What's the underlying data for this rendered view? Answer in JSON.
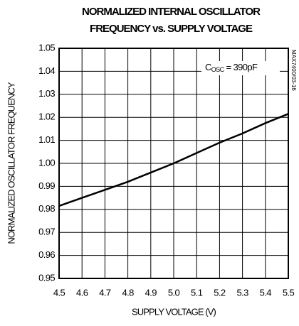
{
  "chart_data": {
    "type": "line",
    "title": [
      "NORMALIZED INTERNAL OSCILLATOR",
      "FREQUENCY vs. SUPPLY VOLTAGE"
    ],
    "x_label": "SUPPLY VOLTAGE (V)",
    "y_label": "NORMALIZED OSCILLATOR FREQUENCY",
    "annotation": {
      "main": "C",
      "subscript": "OSC",
      "rest": " = 390pF"
    },
    "figure_id": "MAX7400/03-16",
    "x": [
      4.5,
      4.6,
      4.7,
      4.8,
      4.9,
      5.0,
      5.1,
      5.2,
      5.3,
      5.4,
      5.5
    ],
    "series": [
      {
        "name": "frequency",
        "color": "#000000",
        "values": [
          0.9815,
          0.985,
          0.9885,
          0.992,
          0.996,
          1.0,
          1.0045,
          1.009,
          1.013,
          1.0175,
          1.0215
        ]
      }
    ],
    "xlim": [
      4.5,
      5.5
    ],
    "xticks": [
      4.5,
      4.6,
      4.7,
      4.8,
      4.9,
      {
        "value": 5,
        "label": "5.0"
      },
      5.1,
      5.2,
      5.3,
      5.4,
      5.5
    ],
    "ylim": [
      0.95,
      1.05
    ],
    "yticks": [
      0.95,
      0.96,
      0.97,
      0.98,
      0.99,
      {
        "value": 1,
        "label": "1.00"
      },
      1.01,
      1.02,
      1.03,
      1.04,
      1.05
    ],
    "grid": true
  }
}
